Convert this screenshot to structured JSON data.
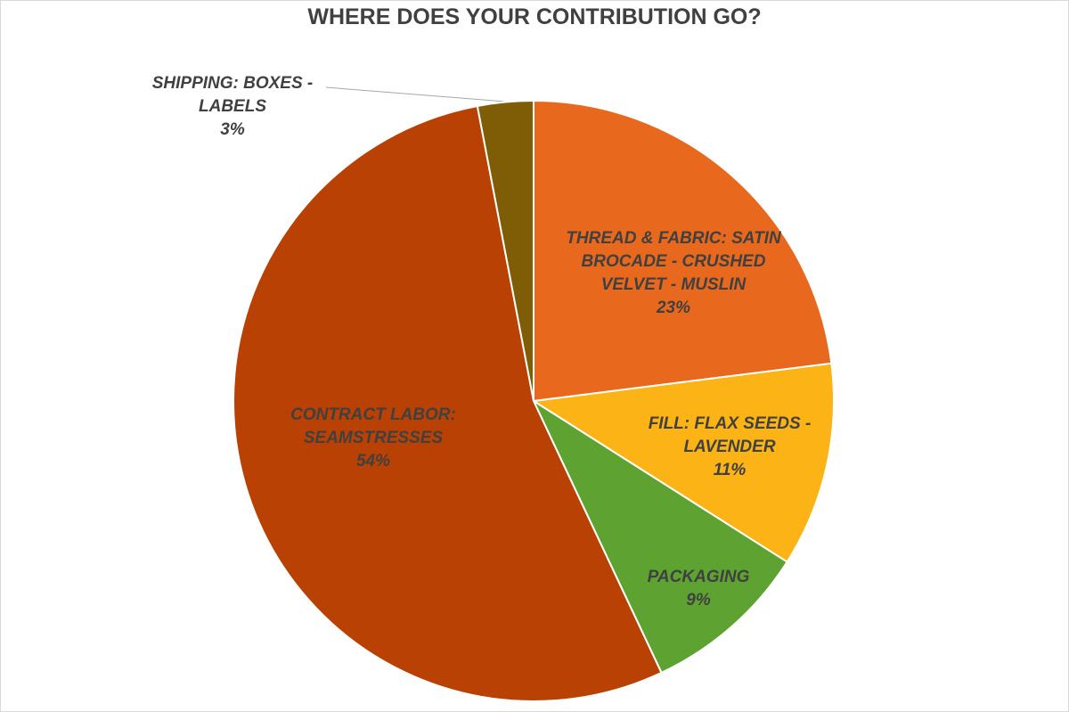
{
  "chart_data": {
    "type": "pie",
    "title": "WHERE DOES YOUR CONTRIBUTION GO?",
    "categories": [
      "THREAD & FABRIC: SATIN BROCADE - CRUSHED VELVET - MUSLIN",
      "FILL: FLAX SEEDS - LAVENDER",
      "PACKAGING",
      "CONTRACT LABOR: SEAMSTRESSES",
      "SHIPPING:  BOXES - LABELS"
    ],
    "values": [
      23,
      11,
      9,
      54,
      3
    ],
    "value_labels": [
      "23%",
      "11%",
      "9%",
      "54%",
      "3%"
    ],
    "colors": [
      "#e8691e",
      "#fbb315",
      "#5ea332",
      "#b94104",
      "#7f5d06"
    ]
  }
}
